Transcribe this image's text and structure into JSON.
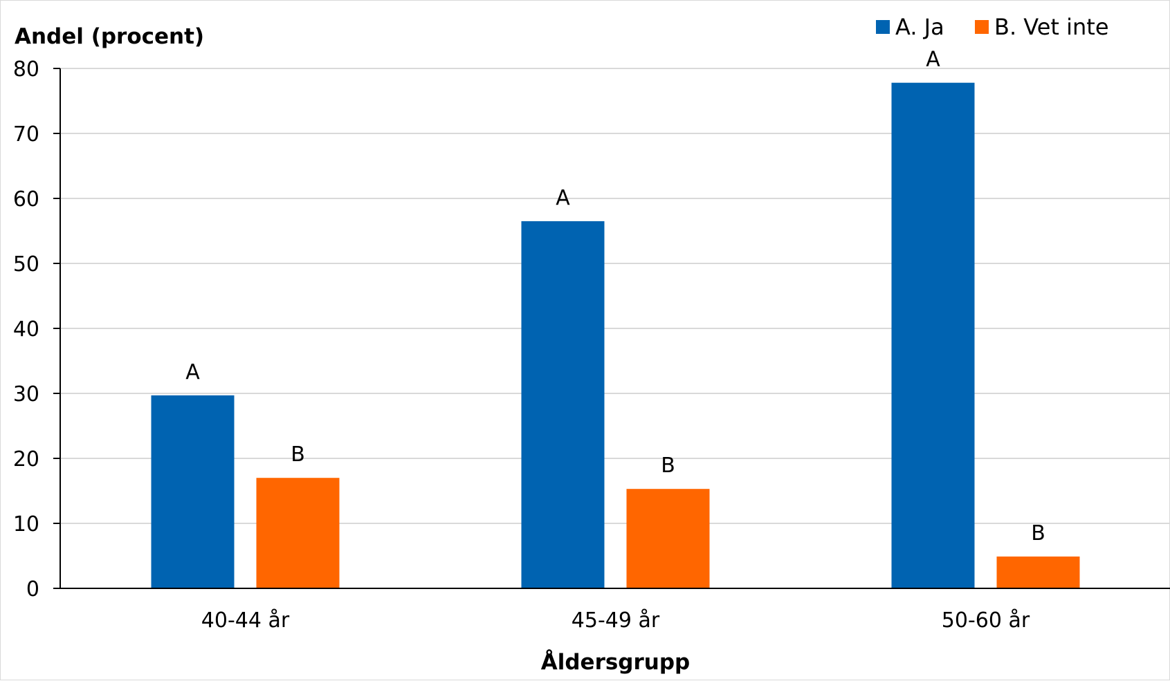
{
  "chart_data": {
    "type": "bar",
    "ylabel": "Andel (procent)",
    "xlabel": "Åldersgrupp",
    "ylim": [
      0,
      80
    ],
    "yticks": [
      0,
      10,
      20,
      30,
      40,
      50,
      60,
      70,
      80
    ],
    "categories": [
      "40-44 år",
      "45-49 år",
      "50-60 år"
    ],
    "grid": true,
    "legend_position": "top-right",
    "series": [
      {
        "name": "A. Ja",
        "label": "A",
        "color": "#0063B1",
        "values": [
          29.7,
          56.5,
          77.8
        ]
      },
      {
        "name": "B. Vet inte",
        "label": "B",
        "color": "#FF6600",
        "values": [
          17.0,
          15.3,
          4.9
        ]
      }
    ]
  }
}
